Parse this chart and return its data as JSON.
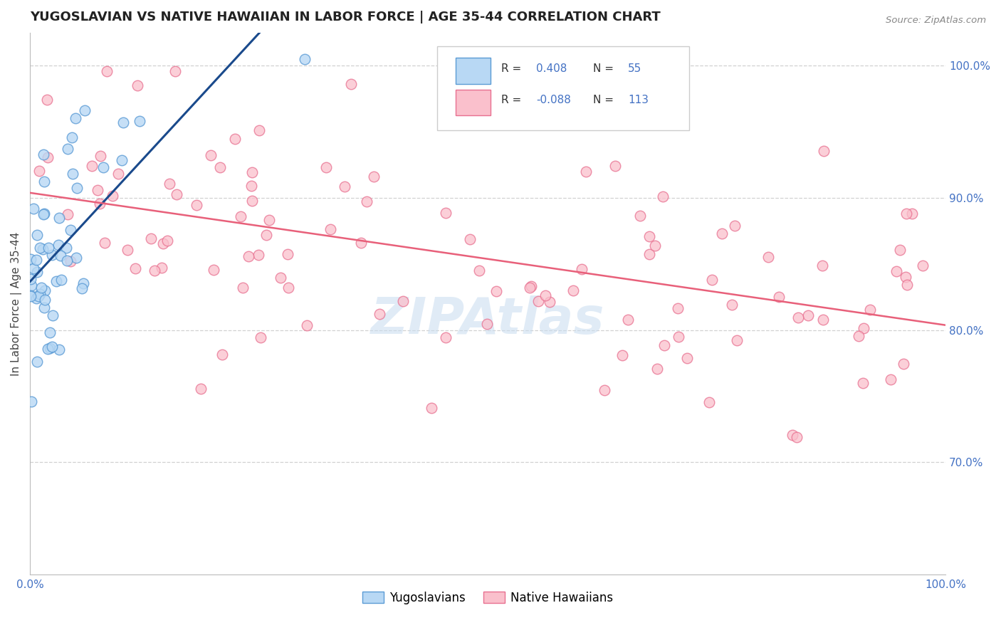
{
  "title": "YUGOSLAVIAN VS NATIVE HAWAIIAN IN LABOR FORCE | AGE 35-44 CORRELATION CHART",
  "source_text": "Source: ZipAtlas.com",
  "ylabel": "In Labor Force | Age 35-44",
  "xlim": [
    0.0,
    1.0
  ],
  "ylim": [
    0.615,
    1.025
  ],
  "right_yticks": [
    0.7,
    0.8,
    0.9,
    1.0
  ],
  "right_yticklabels": [
    "70.0%",
    "80.0%",
    "90.0%",
    "100.0%"
  ],
  "xtick_labels": [
    "0.0%",
    "",
    "",
    "",
    "",
    "100.0%"
  ],
  "blue_color": "#7BB8E8",
  "pink_color": "#F4A0B0",
  "blue_edge": "#5B9BD5",
  "pink_edge": "#E87090",
  "trend_blue": "#1A4A8C",
  "trend_pink": "#E8607A",
  "background": "#FFFFFF",
  "grid_color": "#CCCCCC",
  "blue_R": 0.408,
  "blue_N": 55,
  "pink_R": -0.088,
  "pink_N": 113,
  "watermark": "ZIPAtlas",
  "legend_blue_label": "R =  0.408   N = 55",
  "legend_pink_label": "R = -0.088   N = 113"
}
